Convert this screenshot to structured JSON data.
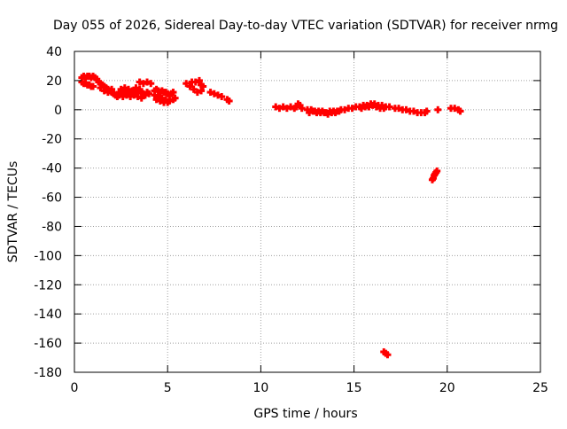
{
  "chart_data": {
    "type": "scatter",
    "title": "Day 055 of 2026, Sidereal Day-to-day VTEC variation (SDTVAR) for receiver nrmg",
    "xlabel": "GPS time / hours",
    "ylabel": "SDTVAR / TECUs",
    "xlim": [
      0,
      25
    ],
    "ylim": [
      -180,
      40
    ],
    "xticks": [
      0,
      5,
      10,
      15,
      20,
      25
    ],
    "yticks": [
      40,
      20,
      0,
      -20,
      -40,
      -60,
      -80,
      -100,
      -120,
      -140,
      -160,
      -180
    ],
    "grid": true,
    "marker": "plus",
    "series": [
      {
        "name": "SDTVAR",
        "color": "#ff0000",
        "points": [
          [
            0.4,
            22
          ],
          [
            0.5,
            23
          ],
          [
            0.6,
            22
          ],
          [
            0.7,
            23
          ],
          [
            0.8,
            23
          ],
          [
            0.9,
            22
          ],
          [
            1.0,
            23
          ],
          [
            1.1,
            22
          ],
          [
            1.2,
            21
          ],
          [
            0.4,
            19
          ],
          [
            0.5,
            18
          ],
          [
            0.6,
            18
          ],
          [
            0.7,
            17
          ],
          [
            0.8,
            17
          ],
          [
            0.9,
            16
          ],
          [
            1.0,
            16
          ],
          [
            1.3,
            19
          ],
          [
            1.4,
            18
          ],
          [
            1.5,
            17
          ],
          [
            1.6,
            16
          ],
          [
            1.7,
            15
          ],
          [
            1.8,
            14
          ],
          [
            1.9,
            13
          ],
          [
            2.0,
            12
          ],
          [
            2.1,
            11
          ],
          [
            2.2,
            10
          ],
          [
            2.3,
            9
          ],
          [
            1.4,
            15
          ],
          [
            1.6,
            13
          ],
          [
            1.8,
            12
          ],
          [
            2.0,
            14
          ],
          [
            2.4,
            12
          ],
          [
            2.5,
            11
          ],
          [
            2.6,
            12
          ],
          [
            2.7,
            13
          ],
          [
            2.8,
            12
          ],
          [
            2.9,
            11
          ],
          [
            3.0,
            12
          ],
          [
            3.1,
            13
          ],
          [
            3.2,
            12
          ],
          [
            3.3,
            11
          ],
          [
            3.4,
            12
          ],
          [
            3.5,
            13
          ],
          [
            3.6,
            12
          ],
          [
            2.4,
            10
          ],
          [
            2.6,
            9
          ],
          [
            2.8,
            10
          ],
          [
            3.0,
            9
          ],
          [
            3.2,
            10
          ],
          [
            3.4,
            9
          ],
          [
            3.6,
            8
          ],
          [
            2.5,
            14
          ],
          [
            2.7,
            15
          ],
          [
            2.9,
            14
          ],
          [
            3.3,
            15
          ],
          [
            3.5,
            14
          ],
          [
            3.7,
            11
          ],
          [
            3.8,
            10
          ],
          [
            3.9,
            12
          ],
          [
            4.0,
            11
          ],
          [
            3.5,
            19
          ],
          [
            3.7,
            18
          ],
          [
            3.9,
            19
          ],
          [
            4.1,
            18
          ],
          [
            4.3,
            13
          ],
          [
            4.4,
            14
          ],
          [
            4.5,
            13
          ],
          [
            4.6,
            12
          ],
          [
            4.7,
            13
          ],
          [
            4.8,
            12
          ],
          [
            4.9,
            12
          ],
          [
            5.0,
            11
          ],
          [
            5.1,
            10
          ],
          [
            5.2,
            11
          ],
          [
            5.3,
            12
          ],
          [
            4.3,
            10
          ],
          [
            4.5,
            9
          ],
          [
            4.7,
            8
          ],
          [
            4.9,
            7
          ],
          [
            5.1,
            6
          ],
          [
            5.3,
            7
          ],
          [
            5.4,
            8
          ],
          [
            4.4,
            7
          ],
          [
            4.6,
            6
          ],
          [
            4.8,
            5
          ],
          [
            5.0,
            5
          ],
          [
            6.0,
            18
          ],
          [
            6.2,
            16
          ],
          [
            6.4,
            14
          ],
          [
            6.6,
            12
          ],
          [
            6.8,
            13
          ],
          [
            6.3,
            19
          ],
          [
            6.5,
            19
          ],
          [
            6.7,
            20
          ],
          [
            6.8,
            17
          ],
          [
            6.9,
            16
          ],
          [
            7.3,
            12
          ],
          [
            7.5,
            11
          ],
          [
            7.7,
            10
          ],
          [
            7.9,
            9
          ],
          [
            8.2,
            7
          ],
          [
            8.3,
            6
          ],
          [
            10.8,
            2
          ],
          [
            11.0,
            1
          ],
          [
            11.2,
            2
          ],
          [
            11.4,
            1
          ],
          [
            11.6,
            2
          ],
          [
            11.8,
            1
          ],
          [
            12.0,
            4
          ],
          [
            12.1,
            3
          ],
          [
            12.2,
            1
          ],
          [
            11.9,
            2
          ],
          [
            12.5,
            0
          ],
          [
            12.7,
            0
          ],
          [
            12.9,
            -1
          ],
          [
            13.1,
            -1
          ],
          [
            13.3,
            -1
          ],
          [
            13.5,
            -2
          ],
          [
            13.7,
            -1
          ],
          [
            13.9,
            -1
          ],
          [
            14.1,
            -1
          ],
          [
            12.6,
            -2
          ],
          [
            12.8,
            -1
          ],
          [
            13.0,
            -2
          ],
          [
            13.2,
            -2
          ],
          [
            13.4,
            -2
          ],
          [
            13.6,
            -3
          ],
          [
            13.8,
            -2
          ],
          [
            14.0,
            -2
          ],
          [
            14.2,
            -1
          ],
          [
            14.3,
            0
          ],
          [
            14.5,
            0
          ],
          [
            14.7,
            1
          ],
          [
            14.9,
            1
          ],
          [
            15.1,
            2
          ],
          [
            15.3,
            2
          ],
          [
            15.5,
            3
          ],
          [
            15.7,
            3
          ],
          [
            15.9,
            4
          ],
          [
            16.1,
            4
          ],
          [
            16.3,
            3
          ],
          [
            16.5,
            3
          ],
          [
            16.7,
            2
          ],
          [
            16.9,
            2
          ],
          [
            15.4,
            1
          ],
          [
            15.6,
            2
          ],
          [
            15.8,
            2
          ],
          [
            16.0,
            3
          ],
          [
            16.2,
            2
          ],
          [
            16.4,
            1
          ],
          [
            16.6,
            1
          ],
          [
            17.2,
            1
          ],
          [
            17.4,
            1
          ],
          [
            17.6,
            0
          ],
          [
            17.8,
            0
          ],
          [
            18.0,
            -1
          ],
          [
            18.2,
            -1
          ],
          [
            18.4,
            -2
          ],
          [
            18.6,
            -2
          ],
          [
            18.8,
            -2
          ],
          [
            18.9,
            -1
          ],
          [
            19.2,
            -48
          ],
          [
            19.25,
            -47
          ],
          [
            19.3,
            -45
          ],
          [
            19.35,
            -44
          ],
          [
            19.4,
            -43
          ],
          [
            19.45,
            -42
          ],
          [
            19.5,
            0
          ],
          [
            20.2,
            1
          ],
          [
            20.4,
            1
          ],
          [
            20.6,
            0
          ],
          [
            20.7,
            -1
          ],
          [
            16.6,
            -166
          ],
          [
            16.7,
            -167
          ],
          [
            16.8,
            -168
          ]
        ]
      }
    ]
  }
}
